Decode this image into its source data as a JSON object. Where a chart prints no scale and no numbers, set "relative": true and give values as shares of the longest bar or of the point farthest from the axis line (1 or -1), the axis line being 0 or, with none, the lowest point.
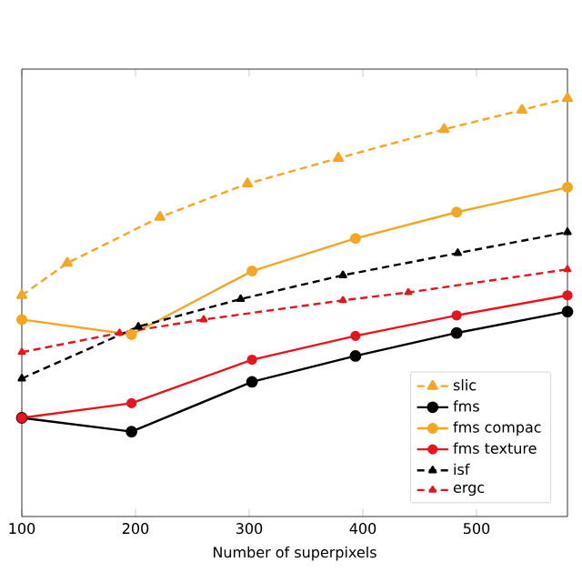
{
  "chart_data": {
    "type": "line",
    "xlabel": "Number of superpixels",
    "relative": true,
    "xlim": [
      100,
      580
    ],
    "xticks": [
      100,
      200,
      300,
      400,
      500
    ],
    "legend": "bottom right",
    "grid": false,
    "series": [
      {
        "name": "slic",
        "color": "#f5a623",
        "marker": "triangle",
        "line_style": "dashed",
        "x": [
          100,
          140,
          221.5,
          298.5,
          378.5,
          471.5,
          540,
          580
        ],
        "values": [
          0.529,
          0.606,
          0.716,
          0.796,
          0.857,
          0.926,
          0.972,
          1.0
        ]
      },
      {
        "name": "fms",
        "color": "#000000",
        "marker": "circle",
        "line_style": "solid",
        "x": [
          100,
          196.5,
          302.5,
          393.5,
          482.5,
          580
        ],
        "values": [
          0.236,
          0.203,
          0.322,
          0.384,
          0.439,
          0.49
        ]
      },
      {
        "name": "fms compac",
        "color": "#f5a623",
        "marker": "circle",
        "line_style": "solid",
        "x": [
          100,
          196.5,
          302.5,
          393.5,
          482.5,
          580
        ],
        "values": [
          0.471,
          0.435,
          0.587,
          0.665,
          0.728,
          0.787
        ]
      },
      {
        "name": "fms texture",
        "color": "#e8141c",
        "marker": "circle",
        "line_style": "solid",
        "x": [
          100,
          196.5,
          302.5,
          393.5,
          482.5,
          580
        ],
        "values": [
          0.236,
          0.271,
          0.375,
          0.432,
          0.481,
          0.529
        ]
      },
      {
        "name": "isf",
        "color": "#000000",
        "marker": "triangle",
        "line_style": "dashed",
        "x": [
          100,
          202.5,
          292.5,
          382.5,
          483.5,
          580
        ],
        "values": [
          0.33,
          0.454,
          0.52,
          0.577,
          0.63,
          0.68
        ]
      },
      {
        "name": "ergc",
        "color": "#e8141c",
        "marker": "triangle",
        "line_style": "dashed",
        "x": [
          100,
          186,
          260,
          382.5,
          440,
          580
        ],
        "values": [
          0.393,
          0.439,
          0.471,
          0.517,
          0.536,
          0.591
        ]
      }
    ]
  }
}
